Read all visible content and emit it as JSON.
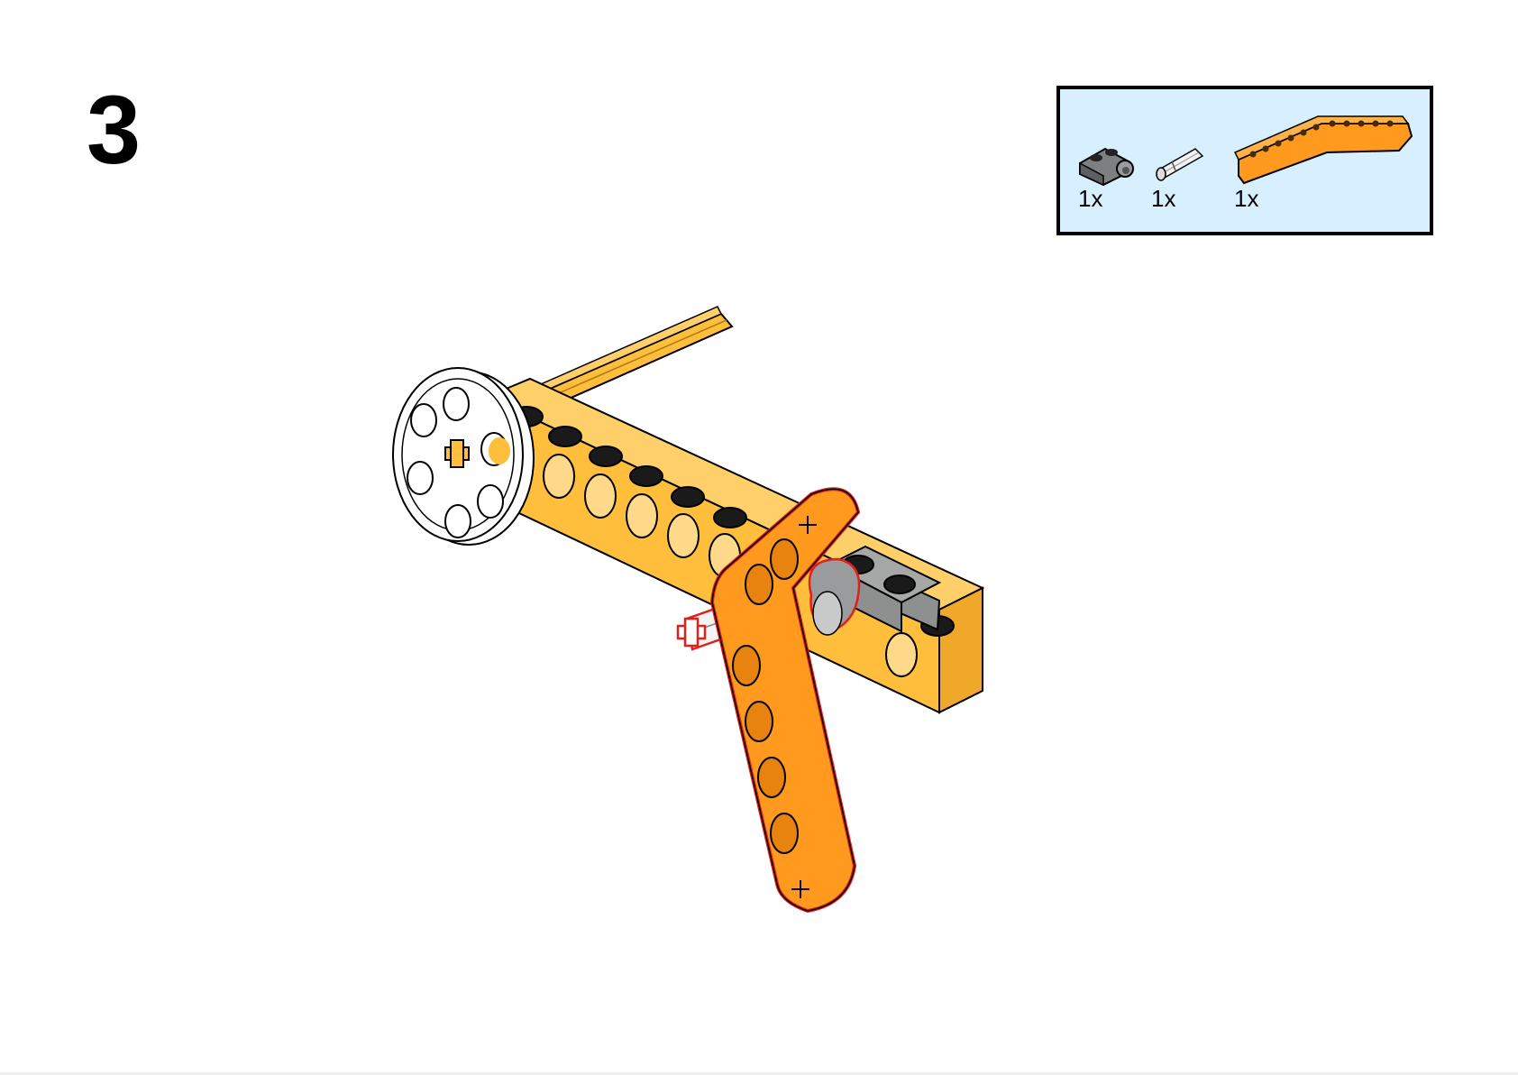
{
  "step": {
    "number": "3"
  },
  "parts_list": {
    "items": [
      {
        "name": "grey-clip-plate-icon",
        "quantity": "1x"
      },
      {
        "name": "grey-axle-pin-icon",
        "quantity": "1x"
      },
      {
        "name": "orange-angled-beam-icon",
        "quantity": "1x"
      }
    ]
  },
  "colors": {
    "beam_yellow": "#ffbe3c",
    "beam_orange": "#ff9a1e",
    "highlight_red": "#e0201a",
    "grey_part": "#8e8f8f",
    "parts_box_bg": "#d8efff"
  }
}
